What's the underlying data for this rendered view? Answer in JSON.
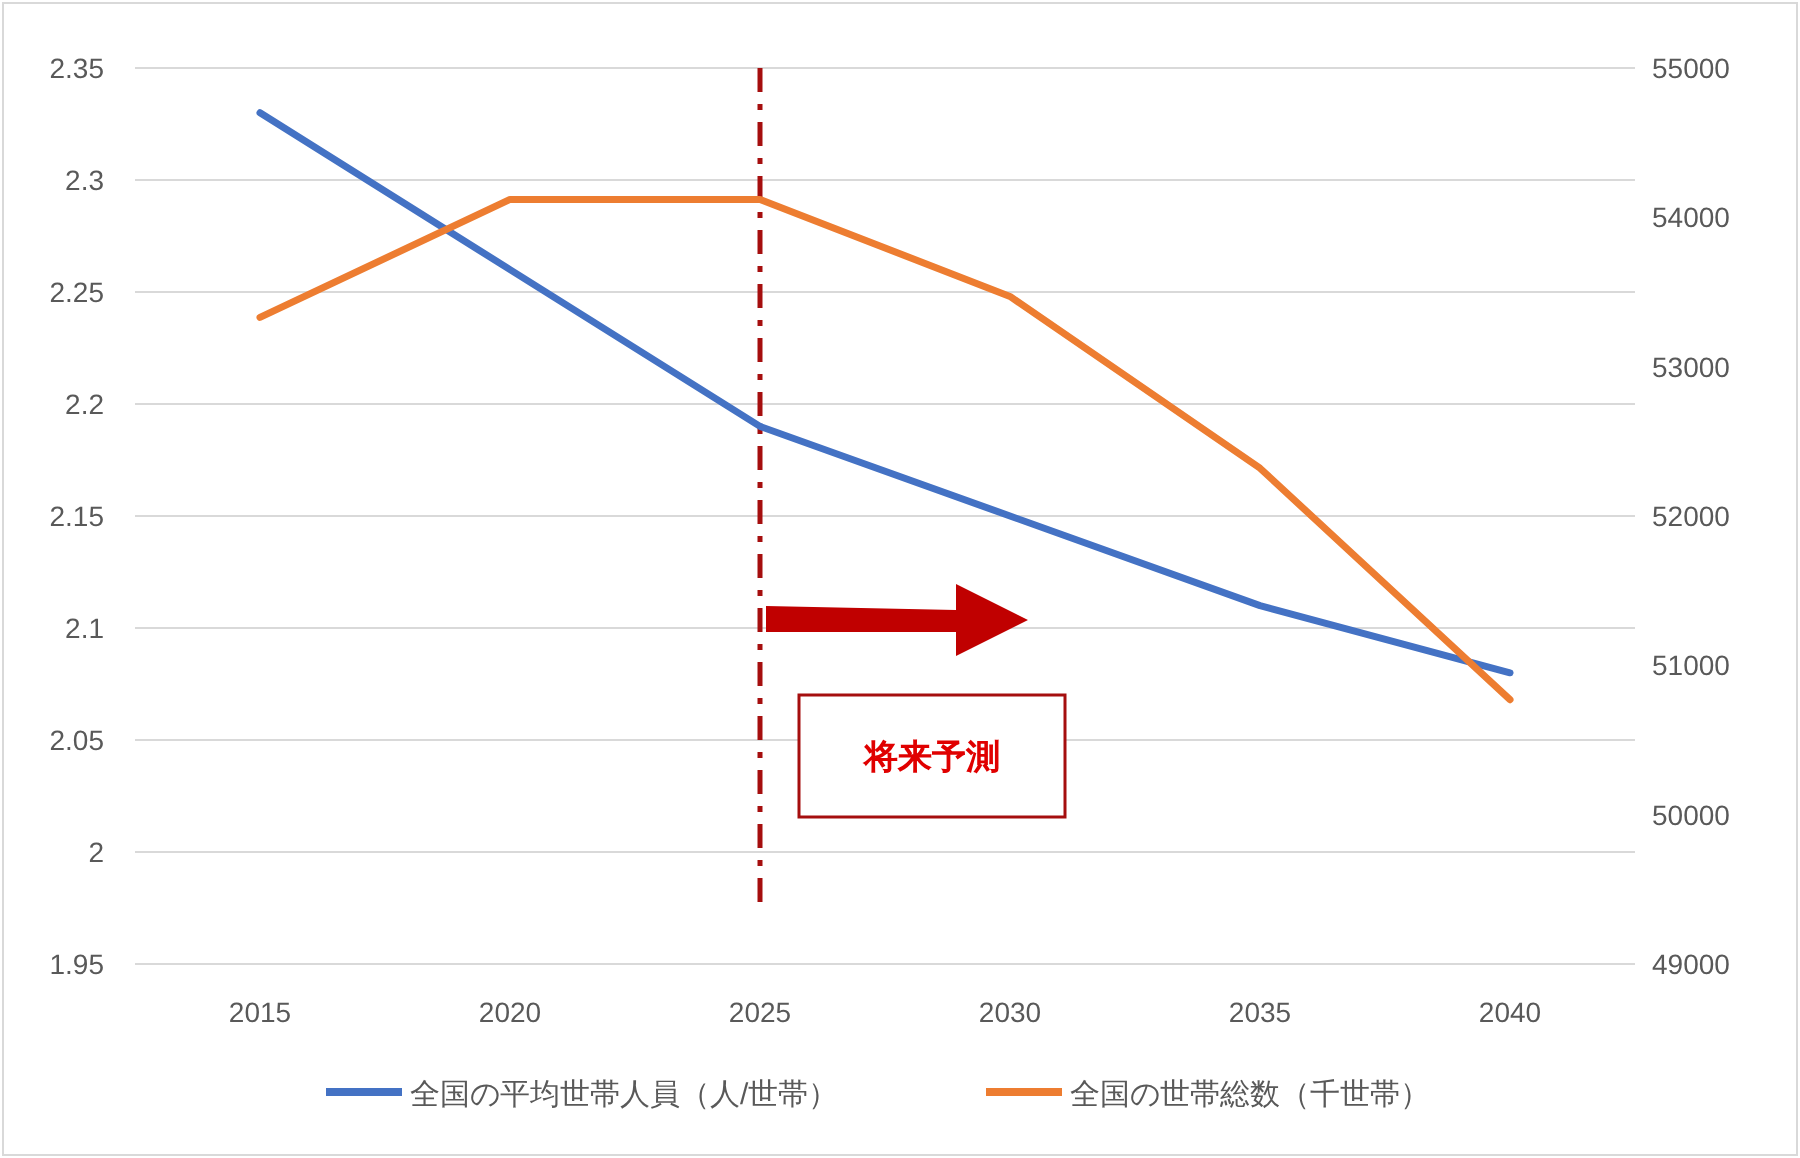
{
  "chart_data": {
    "type": "line",
    "categories": [
      "2015",
      "2020",
      "2025",
      "2030",
      "2035",
      "2040"
    ],
    "series": [
      {
        "name": "全国の平均世帯人員（人/世帯）",
        "color": "#4472c4",
        "values": [
          2.33,
          2.26,
          2.19,
          2.15,
          2.11,
          2.08
        ]
      },
      {
        "name": "全国の世帯総数（千世帯）",
        "color": "#ed7d31",
        "axis": "y2",
        "values": [
          53330,
          54120,
          54120,
          53470,
          52320,
          50770
        ]
      }
    ],
    "ylim": [
      1.95,
      2.35
    ],
    "yticks": [
      1.95,
      2,
      2.05,
      2.1,
      2.15,
      2.2,
      2.25,
      2.3,
      2.35
    ],
    "y2lim": [
      49000,
      55000
    ],
    "y2ticks": [
      49000,
      50000,
      51000,
      52000,
      53000,
      54000,
      55000
    ],
    "ref_lines": [
      {
        "axis": "x",
        "value": "2025",
        "color": "#a50e0e",
        "line_style": "dashdot"
      }
    ],
    "annotations": [
      "将来予測"
    ],
    "grid": "y",
    "legend": "bottom",
    "marker": "none",
    "line_style": "solid"
  }
}
